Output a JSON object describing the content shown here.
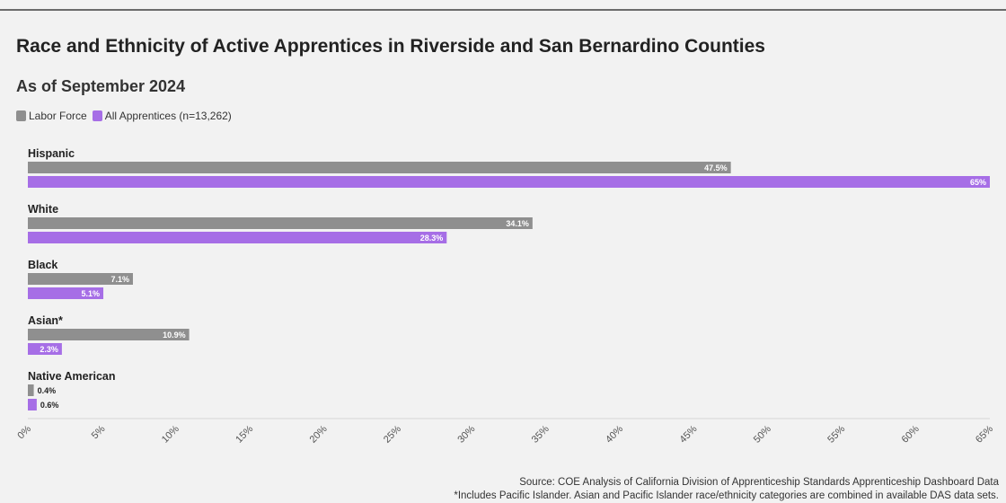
{
  "colors": {
    "labor_force": "#8f8f8f",
    "apprentices": "#a66ee6"
  },
  "chart_data": {
    "type": "bar",
    "orientation": "horizontal",
    "title": "Race and Ethnicity of Active Apprentices in Riverside and San Bernardino Counties",
    "subtitle": "As of September 2024",
    "categories": [
      "Hispanic",
      "White",
      "Black",
      "Asian*",
      "Native American"
    ],
    "series": [
      {
        "name": "Labor Force",
        "values": [
          47.5,
          34.1,
          7.1,
          10.9,
          0.4
        ],
        "labels": [
          "47.5%",
          "34.1%",
          "7.1%",
          "10.9%",
          "0.4%"
        ]
      },
      {
        "name": "All Apprentices (n=13,262)",
        "values": [
          65,
          28.3,
          5.1,
          2.3,
          0.6
        ],
        "labels": [
          "65%",
          "28.3%",
          "5.1%",
          "2.3%",
          "0.6%"
        ]
      }
    ],
    "xlim": [
      0,
      65
    ],
    "xticks": [
      "0%",
      "5%",
      "10%",
      "15%",
      "20%",
      "25%",
      "30%",
      "35%",
      "40%",
      "45%",
      "50%",
      "55%",
      "60%",
      "65%"
    ],
    "legend_position": "top-left",
    "grid": false
  },
  "source": {
    "line1": "Source: COE Analysis of California Division of Apprenticeship Standards Apprenticeship Dashboard Data",
    "line2": "*Includes Pacific Islander. Asian and Pacific Islander race/ethnicity categories are combined in available DAS data sets."
  }
}
